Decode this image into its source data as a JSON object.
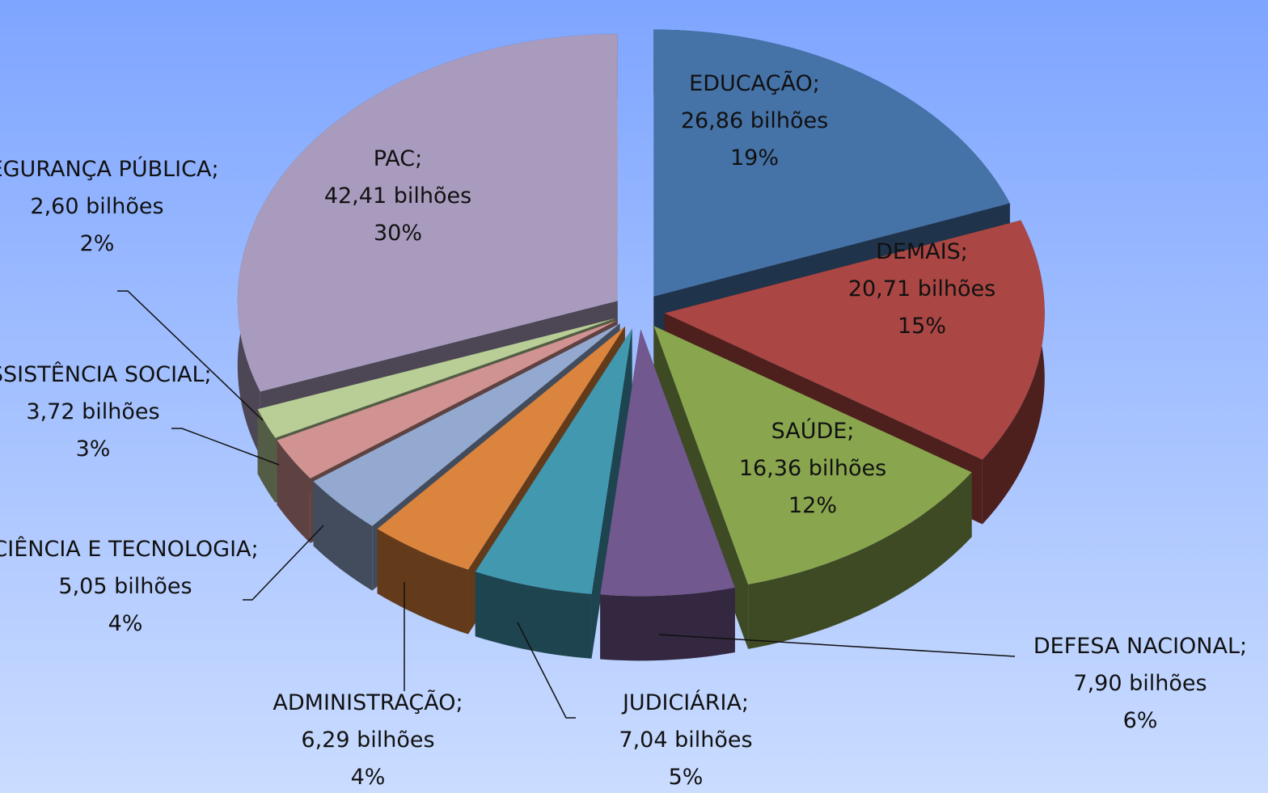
{
  "chart_data": {
    "type": "pie3d",
    "categories": [
      "EDUCAÇÃO;",
      "DEMAIS;",
      "SAÚDE;",
      "DEFESA NACIONAL;",
      "JUDICIÁRIA;",
      "ADMINISTRAÇÃO;",
      "CIÊNCIA E TECNOLOGIA;",
      "ASSISTÊNCIA SOCIAL;",
      "SEGURANÇA PÚBLICA;",
      "PAC;"
    ],
    "values": [
      26.86,
      20.71,
      16.36,
      7.9,
      7.04,
      6.29,
      5.05,
      3.72,
      2.6,
      42.41
    ],
    "value_labels": [
      "26,86 bilhões",
      "20,71 bilhões",
      "16,36 bilhões",
      "7,90 bilhões",
      "7,04 bilhões",
      "6,29 bilhões",
      "5,05 bilhões",
      "3,72 bilhões",
      "2,60 bilhões",
      "42,41 bilhões"
    ],
    "shares": [
      19,
      15,
      12,
      6,
      5,
      4,
      4,
      3,
      2,
      30
    ],
    "share_labels": [
      "19%",
      "15%",
      "12%",
      "6%",
      "5%",
      "4%",
      "4%",
      "3%",
      "2%",
      "30%"
    ],
    "colors": [
      "#4572a7",
      "#aa4643",
      "#89a54e",
      "#71588f",
      "#4198af",
      "#db843d",
      "#93a9cf",
      "#d19392",
      "#b9cd96",
      "#a99bbd"
    ]
  }
}
